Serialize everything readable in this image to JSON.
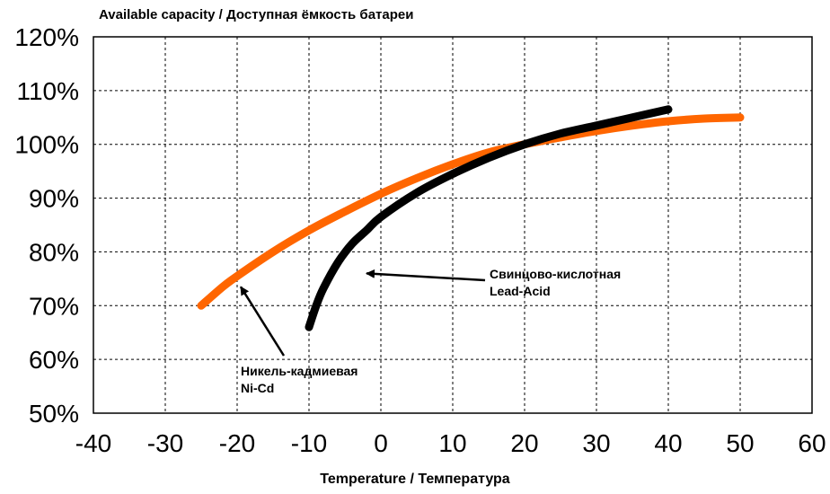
{
  "chart_data": {
    "type": "line",
    "title": "Available capacity / Доступная ёмкость батареи",
    "xlabel": "Temperature / Температура",
    "ylabel": "",
    "xlim": [
      -40,
      60
    ],
    "ylim": [
      50,
      120
    ],
    "xticks": [
      "-40",
      "-30",
      "-20",
      "-10",
      "0",
      "10",
      "20",
      "30",
      "40",
      "50",
      "60"
    ],
    "yticks": [
      "50%",
      "60%",
      "70%",
      "80%",
      "90%",
      "100%",
      "110%",
      "120%"
    ],
    "grid": true,
    "series": [
      {
        "key": "nicd",
        "color": "#ff6600",
        "points": [
          [
            -25,
            70
          ],
          [
            -22,
            73.5
          ],
          [
            -20,
            75.5
          ],
          [
            -15,
            80
          ],
          [
            -10,
            84
          ],
          [
            -5,
            87.5
          ],
          [
            0,
            90.8
          ],
          [
            5,
            93.7
          ],
          [
            10,
            96.3
          ],
          [
            15,
            98.5
          ],
          [
            20,
            100
          ],
          [
            25,
            101.3
          ],
          [
            30,
            102.5
          ],
          [
            35,
            103.5
          ],
          [
            40,
            104.3
          ],
          [
            45,
            104.8
          ],
          [
            50,
            105
          ]
        ]
      },
      {
        "key": "lead_acid",
        "color": "#000000",
        "points": [
          [
            -10,
            66
          ],
          [
            -9,
            70
          ],
          [
            -8,
            73.2
          ],
          [
            -6,
            78
          ],
          [
            -4,
            81.5
          ],
          [
            -2,
            84
          ],
          [
            0,
            86.5
          ],
          [
            5,
            91
          ],
          [
            10,
            94.5
          ],
          [
            15,
            97.5
          ],
          [
            20,
            100
          ],
          [
            25,
            102
          ],
          [
            30,
            103.5
          ],
          [
            35,
            105
          ],
          [
            40,
            106.5
          ]
        ]
      }
    ],
    "annotations": [
      {
        "key": "lead_acid",
        "line1": "Свинцово-кислотная",
        "line2": "Lead-Acid",
        "point_at": [
          -2,
          76
        ]
      },
      {
        "key": "nicd",
        "line1": "Никель-кадмиевая",
        "line2": "Ni-Cd",
        "point_at": [
          -19.5,
          73.5
        ]
      }
    ]
  }
}
